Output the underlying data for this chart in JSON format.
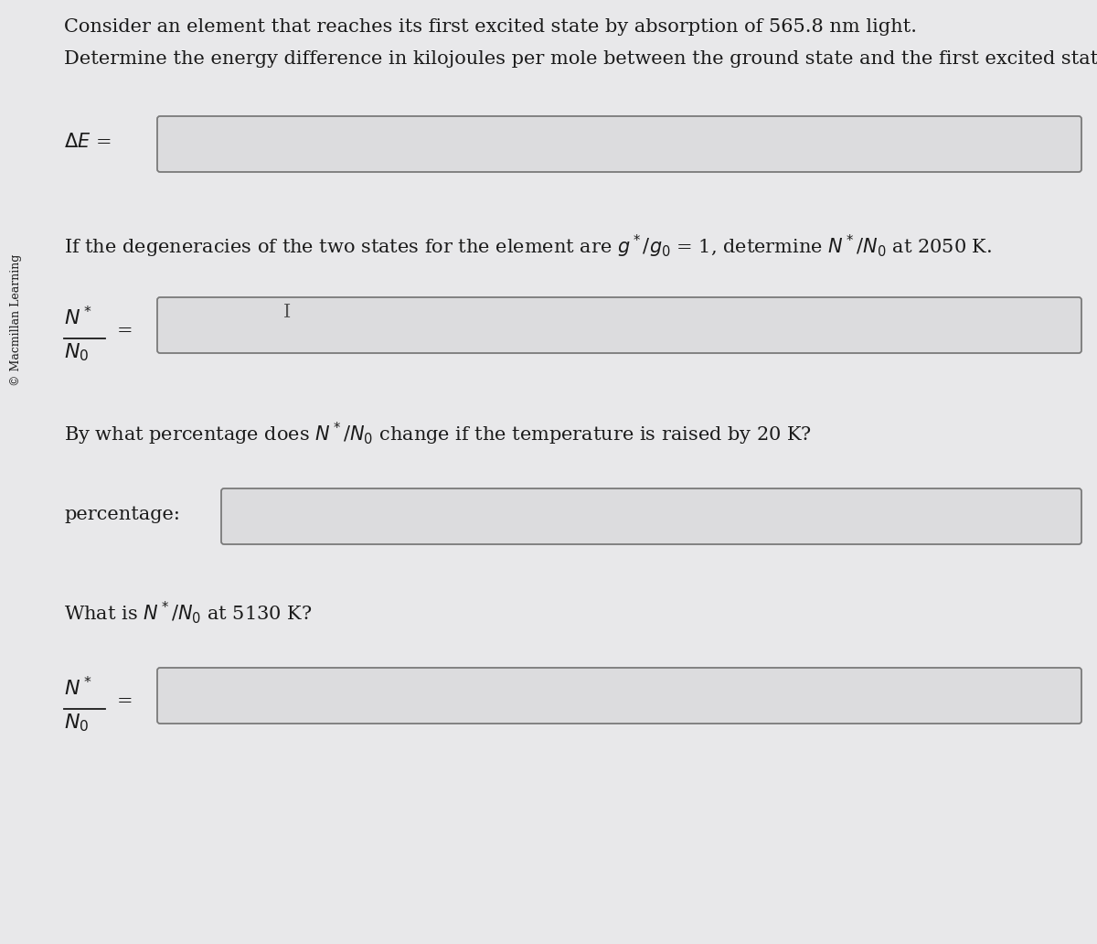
{
  "bg_color": "#e8e8ea",
  "text_color": "#1a1a1a",
  "box_bg_color": "#dcdcde",
  "box_edge_color": "#7a7a7a",
  "sidebar_text": "© Macmillan Learning",
  "line1": "Consider an element that reaches its first excited state by absorption of 565.8 nm light.",
  "line2": "Determine the energy difference in kilojoules per mole between the ground state and the first excited state.",
  "line3": "If the degeneracies of the two states for the element are $g^*/g_0$ = 1, determine $N^*/N_0$ at 2050 K.",
  "line4": "By what percentage does $N^*/N_0$ change if the temperature is raised by 20 K?",
  "line5": "What is $N^*/N_0$ at 5130 K?",
  "font_size_main": 15,
  "font_size_sidebar": 9,
  "fig_width": 12.0,
  "fig_height": 10.32,
  "dpi": 100
}
